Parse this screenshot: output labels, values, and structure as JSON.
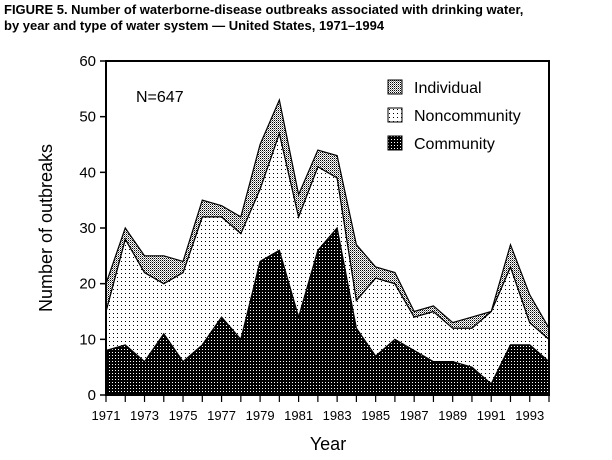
{
  "title": "FIGURE 5. Number of waterborne-disease outbreaks associated with drinking water,",
  "subtitle": "by year and type of water system — United States, 1971–1994",
  "chart_data": {
    "type": "area",
    "stacked": true,
    "xlabel": "Year",
    "ylabel": "Number of outbreaks",
    "ylim": [
      0,
      60
    ],
    "yticks": [
      0,
      10,
      20,
      30,
      40,
      50,
      60
    ],
    "xticklabels": [
      "1971",
      "1973",
      "1975",
      "1977",
      "1979",
      "1981",
      "1983",
      "1985",
      "1987",
      "1989",
      "1991",
      "1993"
    ],
    "annotation": "N=647",
    "legend_position": "top-right",
    "x": [
      1971,
      1972,
      1973,
      1974,
      1975,
      1976,
      1977,
      1978,
      1979,
      1980,
      1981,
      1982,
      1983,
      1984,
      1985,
      1986,
      1987,
      1988,
      1989,
      1990,
      1991,
      1992,
      1993,
      1994
    ],
    "series": [
      {
        "name": "Community",
        "values": [
          8,
          9,
          6,
          11,
          6,
          9,
          14,
          10,
          24,
          26,
          14,
          26,
          30,
          12,
          7,
          10,
          8,
          6,
          6,
          5,
          2,
          9,
          9,
          6
        ]
      },
      {
        "name": "Noncommunity",
        "values": [
          7,
          19,
          16,
          9,
          16,
          23,
          18,
          19,
          13,
          21,
          18,
          15,
          9,
          5,
          14,
          10,
          6,
          9,
          6,
          7,
          13,
          14,
          4,
          4
        ]
      },
      {
        "name": "Individual",
        "values": [
          5,
          2,
          3,
          5,
          2,
          3,
          2,
          3,
          8,
          6,
          4,
          3,
          4,
          10,
          2,
          2,
          1,
          1,
          1,
          2,
          0,
          4,
          5,
          2
        ]
      }
    ],
    "legend_order": [
      "Individual",
      "Noncommunity",
      "Community"
    ]
  }
}
